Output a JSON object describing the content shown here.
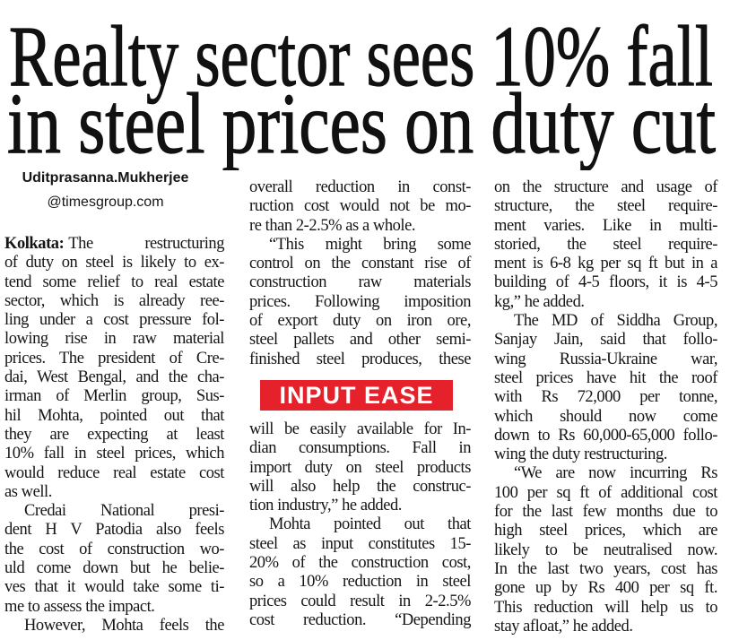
{
  "headline": {
    "lines": [
      "Realty sector sees 10% fall",
      "in steel prices on duty cut"
    ]
  },
  "byline": {
    "name": "Uditprasanna.Mukherjee",
    "handle": "@timesgroup.com"
  },
  "columns": [
    {
      "items": [
        {
          "dateline": "Kolkata:",
          "lines": [
            "The restructuring",
            "of duty on steel is likely to ex-",
            "tend some relief to real estate",
            "sector, which is already ree-",
            "ling under a cost pressure fol-",
            "lowing rise in raw material",
            "prices. The president of Cre-",
            "dai, West Bengal, and the cha-",
            "irman of Merlin group, Sus-",
            "hil Mohta, pointed out that",
            "they are expecting at least",
            "10% fall in steel prices, which",
            "would reduce real estate cost",
            "as well."
          ]
        },
        {
          "lines": [
            "Credai National presi-",
            "dent H V Patodia also feels",
            "the cost of construction wo-",
            "uld come down but he belie-",
            "ves that it would take some ti-",
            "me to assess the impact."
          ]
        },
        {
          "lines": [
            "However, Mohta feels the"
          ]
        }
      ]
    },
    {
      "items": [
        {
          "lines": [
            "overall reduction in const-",
            "ruction cost would not be mo-",
            "re than 2-2.5% as a whole."
          ]
        },
        {
          "lines": [
            "“This might bring some",
            "control on the constant rise of",
            "construction raw materials",
            "prices. Following imposition",
            "of export duty on iron ore,",
            "steel pallets and other semi-",
            "finished steel produces, these"
          ]
        },
        {
          "box": "INPUT EASE"
        },
        {
          "lines": [
            "will be easily available for In-",
            "dian consumptions. Fall in",
            "import duty on steel products",
            "will also help the construc-",
            "tion industry,” he added."
          ]
        },
        {
          "lines": [
            "Mohta pointed out that",
            "steel as input constitutes 15-",
            "20% of the construction cost,",
            "so a 10% reduction in steel",
            "prices could result in 2-2.5%",
            "cost reduction. “Depending"
          ]
        }
      ]
    },
    {
      "items": [
        {
          "lines": [
            "on the structure and usage of",
            "structure, the steel require-",
            "ment varies. Like in multi-",
            "storied, the steel require-",
            "ment is 6-8 kg per sq ft but in a",
            "building of 4-5 floors, it is 4-5",
            "kg,” he added."
          ]
        },
        {
          "lines": [
            "The MD of Siddha Group,",
            "Sanjay Jain, said that follo-",
            "wing Russia-Ukraine war,",
            "steel prices have hit the roof",
            "with Rs 72,000 per tonne,",
            "which should now come",
            "down to Rs 60,000-65,000 follo-",
            "wing the duty restructuring."
          ]
        },
        {
          "lines": [
            "“We are now incurring Rs",
            "100 per sq ft of additional cost",
            "for the last few months due to",
            "high steel prices, which are",
            "likely to be neutralised now.",
            "In the last two years, cost has",
            "gone up by Rs 400 per sq ft.",
            "This reduction will help us to",
            "stay afloat,” he added."
          ]
        }
      ]
    }
  ]
}
